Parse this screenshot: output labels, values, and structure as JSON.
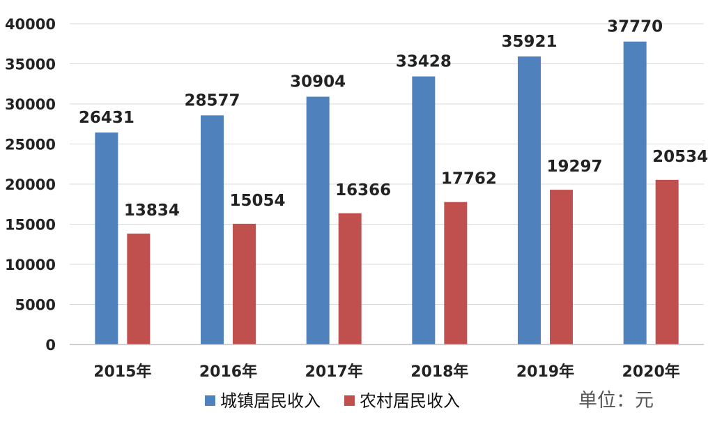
{
  "chart_data": {
    "type": "bar",
    "categories": [
      "2015年",
      "2016年",
      "2017年",
      "2018年",
      "2019年",
      "2020年"
    ],
    "series": [
      {
        "name": "城镇居民收入",
        "color": "#4f81bd",
        "values": [
          26431,
          28577,
          30904,
          33428,
          35921,
          37770
        ]
      },
      {
        "name": "农村居民收入",
        "color": "#c0504d",
        "values": [
          13834,
          15054,
          16366,
          17762,
          19297,
          20534
        ]
      }
    ],
    "ylim": [
      0,
      40000
    ],
    "yticks": [
      "0",
      "5000",
      "10000",
      "15000",
      "20000",
      "25000",
      "30000",
      "35000",
      "40000"
    ],
    "grid": true,
    "legend_position": "bottom",
    "unit_label": "单位：元"
  }
}
